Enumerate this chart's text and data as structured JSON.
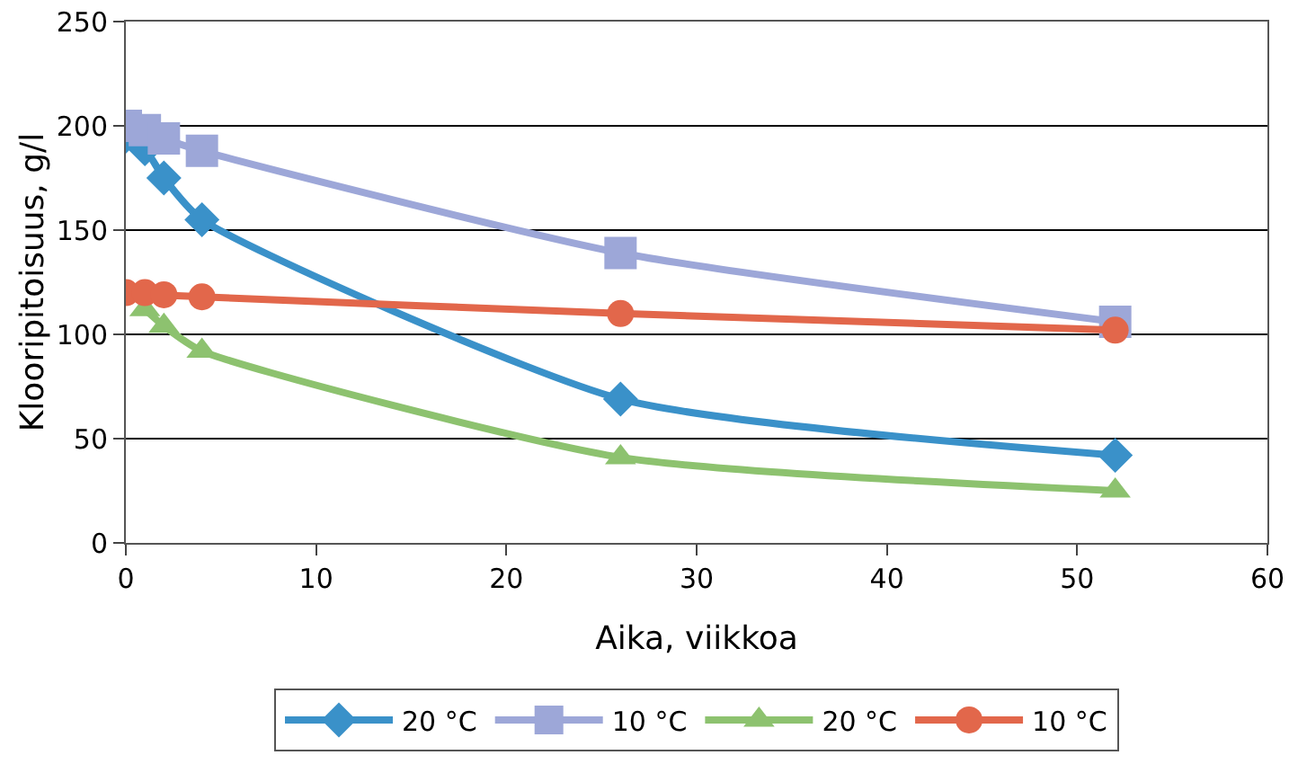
{
  "chart_data": {
    "type": "line",
    "xlabel": "Aika, viikkoa",
    "ylabel": "Klooripitoisuus, g/l",
    "x": [
      0,
      1,
      2,
      4,
      26,
      52
    ],
    "series": [
      {
        "name": "20 °C",
        "color": "#3a91c9",
        "marker": "diamond",
        "values": [
          195,
          189,
          175,
          155,
          69,
          42
        ]
      },
      {
        "name": "10 °C",
        "color": "#9da7d8",
        "marker": "square",
        "values": [
          200,
          198,
          194,
          188,
          139,
          106
        ]
      },
      {
        "name": "20 °C",
        "color": "#8dc26f",
        "marker": "triangle",
        "values": [
          null,
          112,
          104,
          92,
          41,
          25
        ]
      },
      {
        "name": "10 °C",
        "color": "#e2674b",
        "marker": "circle",
        "values": [
          120,
          120,
          119,
          118,
          110,
          102
        ]
      }
    ],
    "xlim": [
      0,
      60
    ],
    "xticks": [
      0,
      10,
      20,
      30,
      40,
      50,
      60
    ],
    "ylim": [
      0,
      250
    ],
    "yticks": [
      0,
      50,
      100,
      150,
      200,
      250
    ],
    "grid": "y",
    "legend": "bottom",
    "line_style": "solid"
  }
}
